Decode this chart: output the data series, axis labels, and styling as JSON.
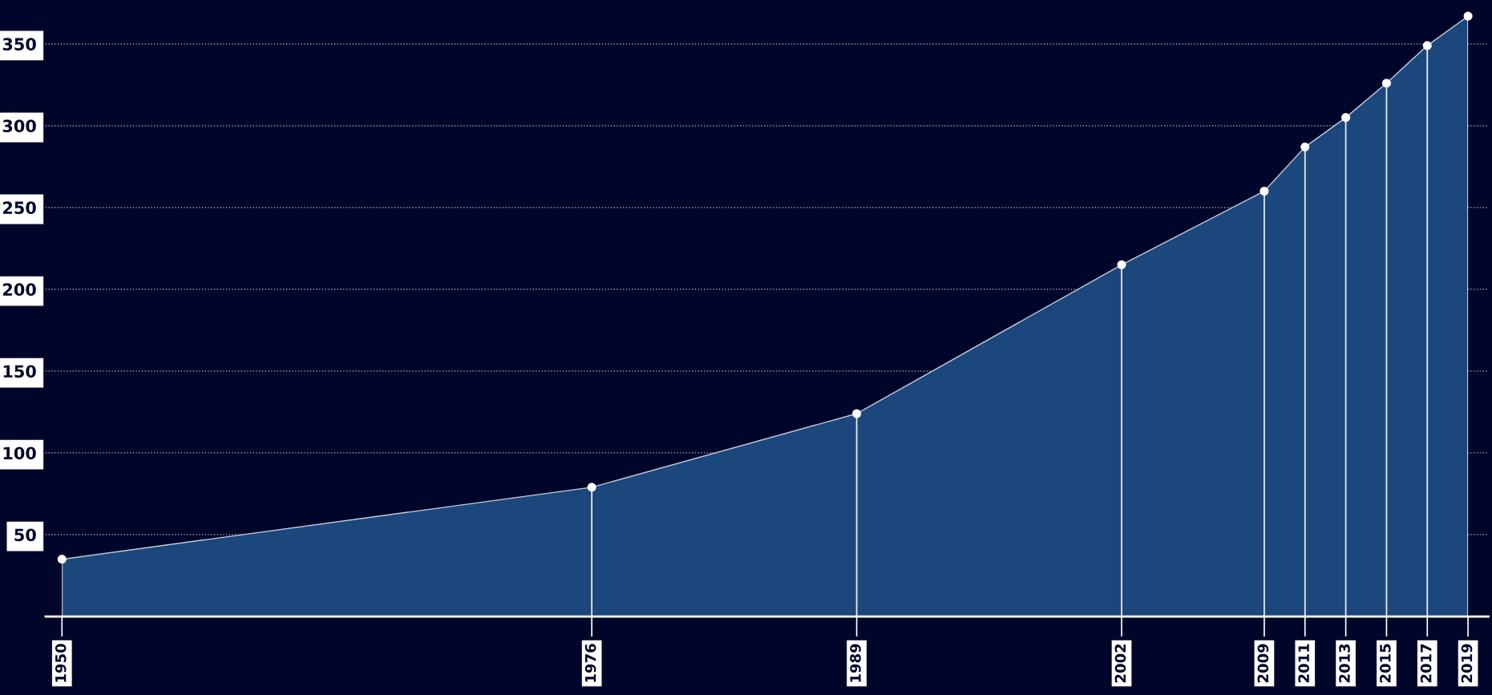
{
  "chart_data": {
    "type": "area",
    "x": [
      1950,
      1976,
      1989,
      2002,
      2009,
      2011,
      2013,
      2015,
      2017,
      2019
    ],
    "series": [
      {
        "color": "#1c477c",
        "values": [
          35,
          79,
          124,
          215,
          260,
          287,
          305,
          326,
          349,
          367
        ]
      }
    ],
    "xlim": [
      1949.2,
      2020
    ],
    "xticks": [
      1950,
      1976,
      1989,
      2002,
      2009,
      2011,
      2013,
      2015,
      2017,
      2019
    ],
    "ylim": [
      0,
      376
    ],
    "yticks": [
      50,
      100,
      150,
      200,
      250,
      300,
      350
    ],
    "grid": true,
    "marker": "circle",
    "line_style": "solid"
  }
}
